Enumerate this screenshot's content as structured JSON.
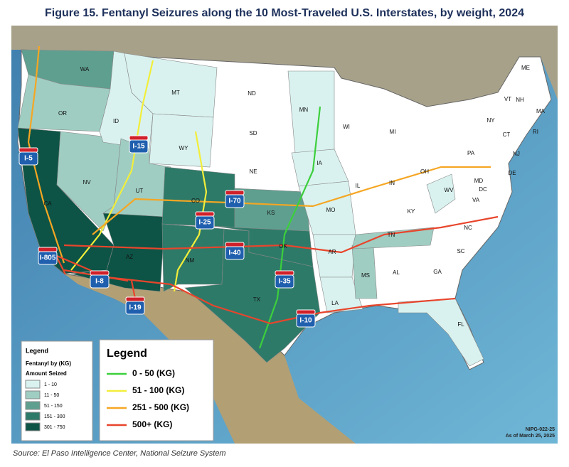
{
  "title": "Figure 15. Fentanyl Seizures along the 10 Most-Traveled U.S. Interstates, by weight, 2024",
  "states": [
    "WA",
    "OR",
    "ID",
    "MT",
    "WY",
    "NV",
    "UT",
    "CA",
    "AZ",
    "CO",
    "NM",
    "ND",
    "SD",
    "NE",
    "KS",
    "OK",
    "TX",
    "MN",
    "IA",
    "MO",
    "AR",
    "LA",
    "WI",
    "MI",
    "IL",
    "IN",
    "OH",
    "KY",
    "TN",
    "MS",
    "AL",
    "GA",
    "FL",
    "SC",
    "NC",
    "VA",
    "WV",
    "MD",
    "DC",
    "DE",
    "PA",
    "NY",
    "VT",
    "NH",
    "ME",
    "MA",
    "CT",
    "RI",
    "NJ"
  ],
  "interstates": [
    {
      "name": "I-5",
      "color": "#f5a623"
    },
    {
      "name": "I-15",
      "color": "#f2ee3a"
    },
    {
      "name": "I-70",
      "color": "#f5a623"
    },
    {
      "name": "I-25",
      "color": "#f2ee3a"
    },
    {
      "name": "I-40",
      "color": "#e8452c"
    },
    {
      "name": "I-805",
      "color": "#e8452c"
    },
    {
      "name": "I-8",
      "color": "#e8452c"
    },
    {
      "name": "I-35",
      "color": "#3ccf3c"
    },
    {
      "name": "I-19",
      "color": "#e8452c"
    },
    {
      "name": "I-10",
      "color": "#e8452c"
    }
  ],
  "state_legend": {
    "title": "Legend",
    "subtitle": "Fentanyl by (KG)",
    "heading": "Amount Seized",
    "items": [
      {
        "label": "1 - 10",
        "color": "#d9f2ef"
      },
      {
        "label": "11 - 50",
        "color": "#9fcdc2"
      },
      {
        "label": "51 - 150",
        "color": "#5f9f8f"
      },
      {
        "label": "151 - 300",
        "color": "#2e7a69"
      },
      {
        "label": "301 - 750",
        "color": "#0d5446"
      }
    ]
  },
  "route_legend": {
    "title": "Legend",
    "items": [
      {
        "label": "0 - 50 (KG)",
        "color": "#3ccf3c"
      },
      {
        "label": "51 - 100 (KG)",
        "color": "#f2ee3a"
      },
      {
        "label": "251 - 500 (KG)",
        "color": "#f5a623"
      },
      {
        "label": "500+ (KG)",
        "color": "#e8452c"
      }
    ]
  },
  "note": [
    "NIPG-022-25",
    "As of March 25, 2025"
  ],
  "source": "Source: El Paso Intelligence Center, National Seizure System"
}
